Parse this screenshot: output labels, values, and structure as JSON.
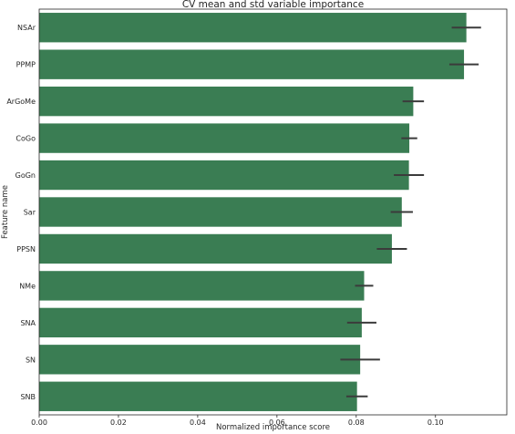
{
  "chart_data": {
    "type": "bar",
    "orientation": "horizontal",
    "title": "CV mean and std variable importance",
    "xlabel": "Normalized importance score",
    "ylabel": "Feature name",
    "categories": [
      "NSAr",
      "PPMP",
      "ArGoMe",
      "CoGo",
      "GoGn",
      "Sar",
      "PPSN",
      "NMe",
      "SNA",
      "SN",
      "SNB"
    ],
    "values": [
      0.1078,
      0.1072,
      0.0944,
      0.0934,
      0.0933,
      0.0915,
      0.089,
      0.082,
      0.0814,
      0.081,
      0.0802
    ],
    "error": [
      0.0037,
      0.0037,
      0.0027,
      0.002,
      0.0038,
      0.0028,
      0.0038,
      0.0023,
      0.0037,
      0.005,
      0.0027
    ],
    "xlim": [
      0.0,
      0.118
    ],
    "xticks": [
      "0.00",
      "0.02",
      "0.04",
      "0.06",
      "0.08",
      "0.10"
    ],
    "xtick_values": [
      0.0,
      0.02,
      0.04,
      0.06,
      0.08,
      0.1
    ],
    "grid": false,
    "colors": {
      "bar": "#3a7d53",
      "errorbar": "#3b3b3b",
      "axes": "#262626",
      "background": "#ffffff"
    }
  }
}
